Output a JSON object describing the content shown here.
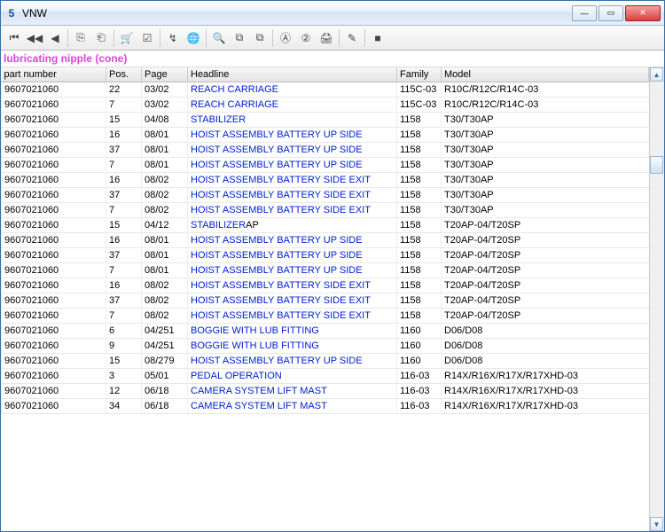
{
  "window": {
    "title": "VNW"
  },
  "subtitle": "lubricating nipple (cone)",
  "columns": {
    "part_number": "part number",
    "pos": "Pos.",
    "page": "Page",
    "headline": "Headline",
    "family": "Family",
    "model": "Model"
  },
  "rows": [
    {
      "pn": "9607021060",
      "pos": "22",
      "page": "03/02",
      "headline": "REACH CARRIAGE",
      "suffix": "",
      "family": "115C-03",
      "model": "R10C/R12C/R14C-03"
    },
    {
      "pn": "9607021060",
      "pos": "7",
      "page": "03/02",
      "headline": "REACH CARRIAGE",
      "suffix": "",
      "family": "115C-03",
      "model": "R10C/R12C/R14C-03"
    },
    {
      "pn": "9607021060",
      "pos": "15",
      "page": "04/08",
      "headline": "STABILIZER",
      "suffix": "",
      "family": "1158",
      "model": "T30/T30AP"
    },
    {
      "pn": "9607021060",
      "pos": "16",
      "page": "08/01",
      "headline": "HOIST ASSEMBLY BATTERY UP SIDE",
      "suffix": "",
      "family": "1158",
      "model": "T30/T30AP"
    },
    {
      "pn": "9607021060",
      "pos": "37",
      "page": "08/01",
      "headline": "HOIST ASSEMBLY BATTERY UP SIDE",
      "suffix": "",
      "family": "1158",
      "model": "T30/T30AP"
    },
    {
      "pn": "9607021060",
      "pos": "7",
      "page": "08/01",
      "headline": "HOIST ASSEMBLY BATTERY UP SIDE",
      "suffix": "",
      "family": "1158",
      "model": "T30/T30AP"
    },
    {
      "pn": "9607021060",
      "pos": "16",
      "page": "08/02",
      "headline": "HOIST ASSEMBLY BATTERY SIDE EXIT",
      "suffix": "",
      "family": "1158",
      "model": "T30/T30AP"
    },
    {
      "pn": "9607021060",
      "pos": "37",
      "page": "08/02",
      "headline": "HOIST ASSEMBLY BATTERY SIDE EXIT",
      "suffix": "",
      "family": "1158",
      "model": "T30/T30AP"
    },
    {
      "pn": "9607021060",
      "pos": "7",
      "page": "08/02",
      "headline": "HOIST ASSEMBLY BATTERY SIDE EXIT",
      "suffix": "",
      "family": "1158",
      "model": "T30/T30AP"
    },
    {
      "pn": "9607021060",
      "pos": "15",
      "page": "04/12",
      "headline": "STABILIZER",
      "suffix": "AP",
      "family": "1158",
      "model": "T20AP-04/T20SP"
    },
    {
      "pn": "9607021060",
      "pos": "16",
      "page": "08/01",
      "headline": "HOIST ASSEMBLY BATTERY UP SIDE",
      "suffix": "",
      "family": "1158",
      "model": "T20AP-04/T20SP"
    },
    {
      "pn": "9607021060",
      "pos": "37",
      "page": "08/01",
      "headline": "HOIST ASSEMBLY BATTERY UP SIDE",
      "suffix": "",
      "family": "1158",
      "model": "T20AP-04/T20SP"
    },
    {
      "pn": "9607021060",
      "pos": "7",
      "page": "08/01",
      "headline": "HOIST ASSEMBLY BATTERY UP SIDE",
      "suffix": "",
      "family": "1158",
      "model": "T20AP-04/T20SP"
    },
    {
      "pn": "9607021060",
      "pos": "16",
      "page": "08/02",
      "headline": "HOIST ASSEMBLY BATTERY SIDE EXIT",
      "suffix": "",
      "family": "1158",
      "model": "T20AP-04/T20SP"
    },
    {
      "pn": "9607021060",
      "pos": "37",
      "page": "08/02",
      "headline": "HOIST ASSEMBLY BATTERY SIDE EXIT",
      "suffix": "",
      "family": "1158",
      "model": "T20AP-04/T20SP"
    },
    {
      "pn": "9607021060",
      "pos": "7",
      "page": "08/02",
      "headline": "HOIST ASSEMBLY BATTERY SIDE EXIT",
      "suffix": "",
      "family": "1158",
      "model": "T20AP-04/T20SP"
    },
    {
      "pn": "9607021060",
      "pos": "6",
      "page": "04/251",
      "headline": "BOGGIE WITH LUB FITTING",
      "suffix": "",
      "family": "1160",
      "model": "D06/D08"
    },
    {
      "pn": "9607021060",
      "pos": "9",
      "page": "04/251",
      "headline": "BOGGIE WITH LUB FITTING",
      "suffix": "",
      "family": "1160",
      "model": "D06/D08"
    },
    {
      "pn": "9607021060",
      "pos": "15",
      "page": "08/279",
      "headline": "HOIST ASSEMBLY BATTERY UP SIDE",
      "suffix": "",
      "family": "1160",
      "model": "D06/D08"
    },
    {
      "pn": "9607021060",
      "pos": "3",
      "page": "05/01",
      "headline": "PEDAL OPERATION",
      "suffix": "",
      "family": "116-03",
      "model": "R14X/R16X/R17X/R17XHD-03"
    },
    {
      "pn": "9607021060",
      "pos": "12",
      "page": "06/18",
      "headline": "CAMERA SYSTEM LIFT MAST",
      "suffix": "",
      "family": "116-03",
      "model": "R14X/R16X/R17X/R17XHD-03"
    },
    {
      "pn": "9607021060",
      "pos": "34",
      "page": "06/18",
      "headline": "CAMERA SYSTEM LIFT MAST",
      "suffix": "",
      "family": "116-03",
      "model": "R14X/R16X/R17X/R17XHD-03"
    }
  ],
  "toolbar_icons": [
    "⏮",
    "◀◀",
    "◀",
    "⎘",
    "⎗",
    "🛒",
    "☑",
    "↯",
    "🌐",
    "🔍",
    "⧉",
    "⧉",
    "Ⓐ",
    "②",
    "🖨",
    "✎",
    "■"
  ],
  "colors": {
    "link": "#0020d0",
    "subtitle": "#e040e0",
    "titlebar_grad_top": "#fdfeff",
    "titlebar_grad_bottom": "#e8f0f9"
  }
}
